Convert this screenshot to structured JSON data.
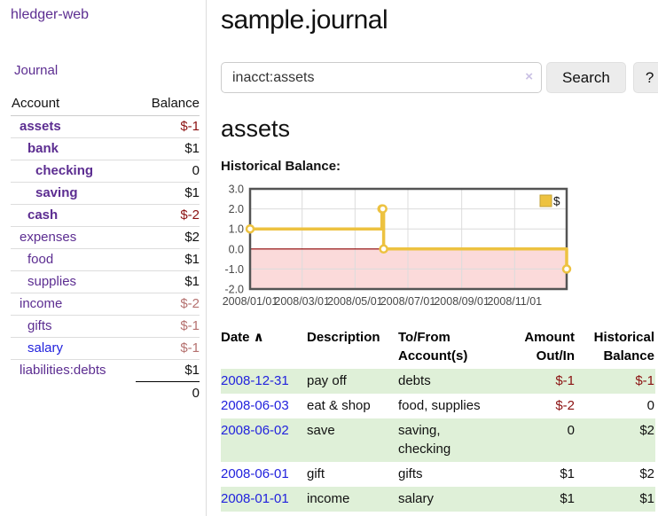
{
  "app": {
    "title": "hledger-web"
  },
  "sidebar": {
    "journal_label": "Journal",
    "account_header": "Account",
    "balance_header": "Balance",
    "accounts": [
      {
        "name": "assets",
        "depth": 0,
        "bold": true,
        "balance": "$-1",
        "negative": true,
        "link_color": "purple"
      },
      {
        "name": "bank",
        "depth": 1,
        "bold": true,
        "balance": "$1",
        "negative": false,
        "link_color": "purple"
      },
      {
        "name": "checking",
        "depth": 2,
        "bold": true,
        "balance": "0",
        "negative": false,
        "link_color": "purple"
      },
      {
        "name": "saving",
        "depth": 2,
        "bold": true,
        "balance": "$1",
        "negative": false,
        "link_color": "purple"
      },
      {
        "name": "cash",
        "depth": 1,
        "bold": true,
        "balance": "$-2",
        "negative": true,
        "link_color": "purple"
      },
      {
        "name": "expenses",
        "depth": 0,
        "bold": false,
        "balance": "$2",
        "negative": false,
        "link_color": "purple"
      },
      {
        "name": "food",
        "depth": 1,
        "bold": false,
        "balance": "$1",
        "negative": false,
        "link_color": "purple"
      },
      {
        "name": "supplies",
        "depth": 1,
        "bold": false,
        "balance": "$1",
        "negative": false,
        "link_color": "purple"
      },
      {
        "name": "income",
        "depth": 0,
        "bold": false,
        "balance": "$-2",
        "negative": true,
        "link_color": "purple"
      },
      {
        "name": "gifts",
        "depth": 1,
        "bold": false,
        "balance": "$-1",
        "negative": true,
        "link_color": "purple"
      },
      {
        "name": "salary",
        "depth": 1,
        "bold": false,
        "balance": "$-1",
        "negative": true,
        "link_color": "blue"
      },
      {
        "name": "liabilities:debts",
        "depth": 0,
        "bold": false,
        "balance": "$1",
        "negative": false,
        "link_color": "purple"
      }
    ],
    "total": "0"
  },
  "header": {
    "title": "sample.journal"
  },
  "search": {
    "query": "inacct:assets",
    "clear_icon": "×",
    "search_label": "Search",
    "help_label": "?"
  },
  "register": {
    "heading": "assets",
    "chart_title": "Historical Balance:",
    "sort_icon": "∧",
    "columns": [
      {
        "label": "Date",
        "align": "left",
        "sortable": true
      },
      {
        "label": "Description",
        "align": "left",
        "sortable": false
      },
      {
        "label": "To/From Account(s)",
        "align": "left",
        "sortable": false
      },
      {
        "label": "Amount Out/In",
        "align": "right",
        "sortable": false
      },
      {
        "label": "Historical Balance",
        "align": "right",
        "sortable": false
      }
    ],
    "rows": [
      {
        "date": "2008-12-31",
        "description": "pay off",
        "accounts": "debts",
        "amount": "$-1",
        "amount_negative": true,
        "balance": "$-1",
        "balance_negative": true
      },
      {
        "date": "2008-06-03",
        "description": "eat & shop",
        "accounts": "food, supplies",
        "amount": "$-2",
        "amount_negative": true,
        "balance": "0",
        "balance_negative": false
      },
      {
        "date": "2008-06-02",
        "description": "save",
        "accounts": "saving, checking",
        "amount": "0",
        "amount_negative": false,
        "balance": "$2",
        "balance_negative": false
      },
      {
        "date": "2008-06-01",
        "description": "gift",
        "accounts": "gifts",
        "amount": "$1",
        "amount_negative": false,
        "balance": "$2",
        "balance_negative": false
      },
      {
        "date": "2008-01-01",
        "description": "income",
        "accounts": "salary",
        "amount": "$1",
        "amount_negative": false,
        "balance": "$1",
        "balance_negative": false
      }
    ]
  },
  "chart_data": {
    "type": "line",
    "title": "Historical Balance:",
    "step": true,
    "series": [
      {
        "name": "$",
        "color": "#edc240",
        "points": [
          {
            "date": "2008-01-01",
            "day": 0,
            "value": 1
          },
          {
            "date": "2008-06-01",
            "day": 152,
            "value": 2
          },
          {
            "date": "2008-06-02",
            "day": 153,
            "value": 2
          },
          {
            "date": "2008-06-03",
            "day": 154,
            "value": 0
          },
          {
            "date": "2008-12-31",
            "day": 365,
            "value": -1
          }
        ]
      }
    ],
    "x_ticks": [
      {
        "label": "2008/01/01",
        "day": 0
      },
      {
        "label": "2008/03/01",
        "day": 60
      },
      {
        "label": "2008/05/01",
        "day": 121
      },
      {
        "label": "2008/07/01",
        "day": 182
      },
      {
        "label": "2008/09/01",
        "day": 244
      },
      {
        "label": "2008/11/01",
        "day": 305
      }
    ],
    "y_ticks": [
      3,
      2,
      1,
      0,
      -1,
      -2
    ],
    "ylim": [
      -2,
      3
    ],
    "xlim_days": [
      0,
      365
    ],
    "grid": true,
    "grid_color": "#dcdcdc",
    "border_color": "#545454",
    "negative_region_color": "#fbdada",
    "zero_line_color": "#8b0000",
    "axis_label_color": "#474747",
    "legend_position": "top-right"
  }
}
